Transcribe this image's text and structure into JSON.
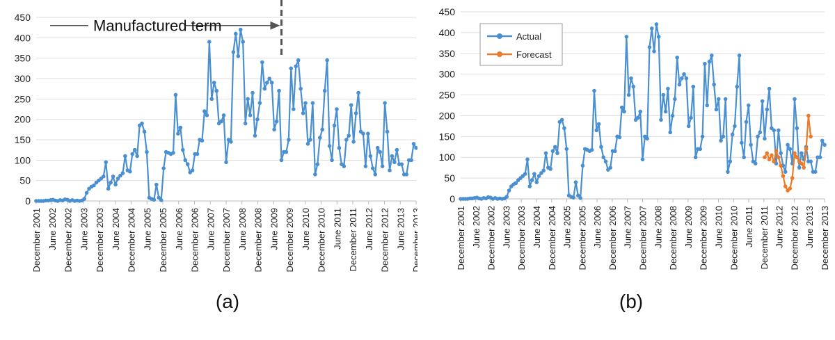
{
  "captions": [
    "(a)",
    "(b)"
  ],
  "colors": {
    "actual": "#4a8fd0",
    "forecast": "#ec7a28",
    "grid": "#dddddd",
    "axis": "#bbbbbb",
    "annotation": "#555555",
    "text": "#222222"
  },
  "chart_data": [
    {
      "type": "line",
      "ylim": [
        0,
        450
      ],
      "yticks": [
        0,
        50,
        100,
        150,
        200,
        250,
        300,
        350,
        400,
        450
      ],
      "xticks": [
        "December 2001",
        "June 2002",
        "December 2002",
        "June 2003",
        "December 2003",
        "June 2004",
        "December 2004",
        "June 2005",
        "December 2005",
        "June 2006",
        "December 2006",
        "June 2007",
        "December 2007",
        "June 2008",
        "December 2008",
        "June 2009",
        "December 2009",
        "June 2010",
        "December 2010",
        "June 2011",
        "December 2011",
        "June 2012",
        "December 2012",
        "June 2013",
        "December 2013"
      ],
      "grid": "horizontal",
      "annotation": {
        "text": "Manufactured term",
        "start_index": 0,
        "end_index": 102
      },
      "series": [
        {
          "values": [
            0,
            0,
            0,
            0,
            1,
            1,
            2,
            3,
            1,
            0,
            2,
            1,
            4,
            3,
            0,
            2,
            0,
            1,
            0,
            1,
            5,
            20,
            30,
            35,
            38,
            45,
            50,
            55,
            60,
            95,
            30,
            45,
            60,
            40,
            55,
            62,
            68,
            110,
            75,
            72,
            115,
            125,
            110,
            185,
            190,
            170,
            120,
            8,
            5,
            3,
            40,
            8,
            2,
            80,
            120,
            118,
            115,
            118,
            260,
            165,
            180,
            125,
            100,
            90,
            70,
            75,
            115,
            115,
            150,
            148,
            220,
            210,
            390,
            250,
            290,
            270,
            190,
            195,
            210,
            95,
            150,
            145,
            365,
            410,
            355,
            420,
            390,
            190,
            250,
            210,
            265,
            160,
            200,
            240,
            340,
            275,
            290,
            300,
            290,
            175,
            195,
            270,
            100,
            120,
            120,
            150,
            325,
            225,
            330,
            345,
            275,
            215,
            240,
            140,
            150,
            240,
            65,
            90,
            155,
            175,
            270,
            345,
            135,
            100,
            185,
            225,
            130,
            90,
            85,
            150,
            160,
            235,
            145,
            215,
            265,
            170,
            165,
            85,
            165,
            110,
            80,
            65,
            130,
            120,
            85,
            240,
            170,
            75,
            110,
            95,
            125,
            90,
            90,
            65,
            65,
            100,
            100,
            140,
            130
          ],
          "color": "#4a8fd0"
        }
      ]
    },
    {
      "type": "line",
      "ylim": [
        0,
        450
      ],
      "yticks": [
        0,
        50,
        100,
        150,
        200,
        250,
        300,
        350,
        400,
        450
      ],
      "xticks": [
        "December 2001",
        "June 2002",
        "December 2002",
        "June 2003",
        "December 2003",
        "June 2004",
        "December 2004",
        "June 2005",
        "December 2005",
        "June 2006",
        "December 2006",
        "June 2007",
        "December 2007",
        "June 2008",
        "December 2008",
        "June 2009",
        "December 2009",
        "June 2010",
        "December 2010",
        "June 2011",
        "December 2011",
        "June 2012",
        "December 2012",
        "June 2013",
        "December 2013"
      ],
      "grid": "horizontal",
      "legend": "top-left",
      "series": [
        {
          "name": "Actual",
          "values": [
            0,
            0,
            0,
            0,
            1,
            1,
            2,
            3,
            1,
            0,
            2,
            1,
            4,
            3,
            0,
            2,
            0,
            1,
            0,
            1,
            5,
            20,
            30,
            35,
            38,
            45,
            50,
            55,
            60,
            95,
            30,
            45,
            60,
            40,
            55,
            62,
            68,
            110,
            75,
            72,
            115,
            125,
            110,
            185,
            190,
            170,
            120,
            8,
            5,
            3,
            40,
            8,
            2,
            80,
            120,
            118,
            115,
            118,
            260,
            165,
            180,
            125,
            100,
            90,
            70,
            75,
            115,
            115,
            150,
            148,
            220,
            210,
            390,
            250,
            290,
            270,
            190,
            195,
            210,
            95,
            150,
            145,
            365,
            410,
            355,
            420,
            390,
            190,
            250,
            210,
            265,
            160,
            200,
            240,
            340,
            275,
            290,
            300,
            290,
            175,
            195,
            270,
            100,
            120,
            120,
            150,
            325,
            225,
            330,
            345,
            275,
            215,
            240,
            140,
            150,
            240,
            65,
            90,
            155,
            175,
            270,
            345,
            135,
            100,
            185,
            225,
            130,
            90,
            85,
            150,
            160,
            235,
            145,
            215,
            265,
            170,
            165,
            85,
            165,
            110,
            80,
            65,
            130,
            120,
            85,
            240,
            170,
            75,
            110,
            95,
            125,
            90,
            90,
            65,
            65,
            100,
            100,
            140,
            130
          ],
          "color": "#4a8fd0"
        },
        {
          "name": "Forecast",
          "start_index": 132,
          "values": [
            100,
            110,
            95,
            105,
            90,
            115,
            100,
            80,
            55,
            30,
            20,
            25,
            50,
            110,
            100,
            90,
            85,
            75,
            120,
            200,
            150
          ],
          "color": "#ec7a28"
        }
      ]
    }
  ]
}
